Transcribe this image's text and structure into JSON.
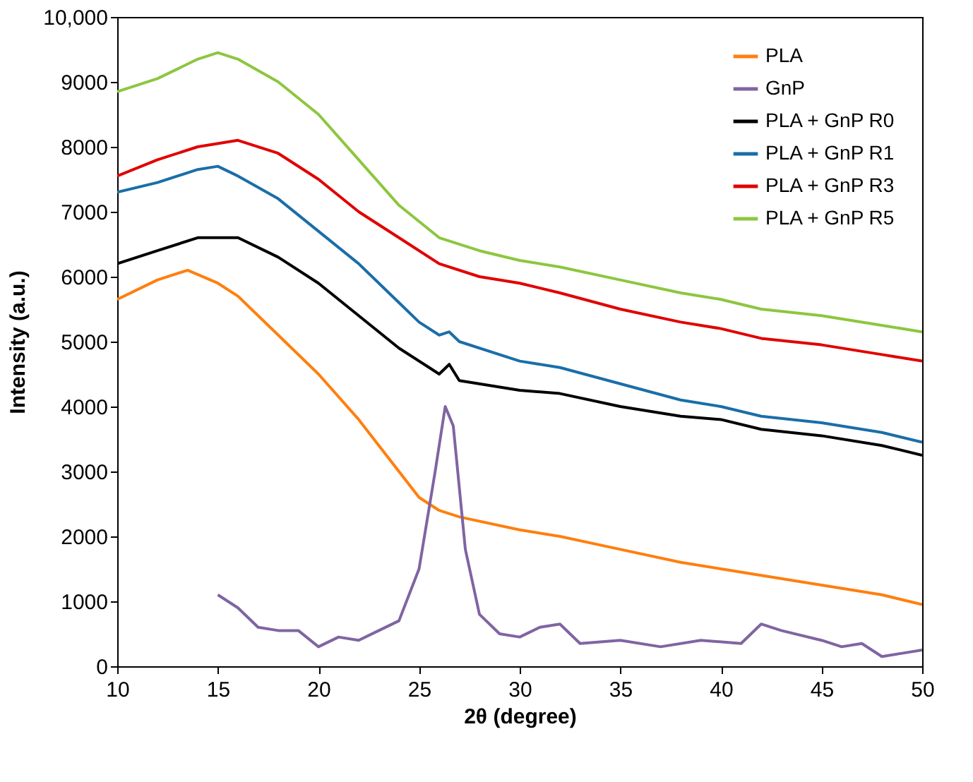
{
  "chart_data": {
    "type": "line",
    "xlabel": "2θ (degree)",
    "ylabel": "Intensity (a.u.)",
    "xlim": [
      10,
      50
    ],
    "xticks": [
      10,
      15,
      20,
      25,
      30,
      35,
      40,
      45,
      50
    ],
    "ylim": [
      0,
      10000
    ],
    "yticks": [
      0,
      1000,
      2000,
      3000,
      4000,
      5000,
      6000,
      7000,
      8000,
      9000,
      {
        "value": 10000,
        "label": "10,000"
      }
    ],
    "grid": false,
    "legend": "top right",
    "marker": "none",
    "line_style": "solid",
    "series": [
      {
        "name": "PLA",
        "color": "#ff7f0e",
        "x": [
          10,
          12,
          13.5,
          15,
          16,
          18,
          20,
          22,
          24,
          25,
          26,
          27,
          30,
          32,
          35,
          38,
          40,
          42,
          45,
          48,
          50
        ],
        "values": [
          5650,
          5950,
          6100,
          5900,
          5700,
          5100,
          4500,
          3800,
          3000,
          2600,
          2400,
          2300,
          2100,
          2000,
          1800,
          1600,
          1500,
          1400,
          1250,
          1100,
          950
        ]
      },
      {
        "name": "GnP",
        "color": "#8064a2",
        "x": [
          15,
          16,
          17,
          18,
          19,
          20,
          21,
          22,
          23,
          24,
          25,
          25.8,
          26.3,
          26.7,
          27.3,
          28,
          29,
          30,
          31,
          32,
          33,
          35,
          37,
          39,
          41,
          42,
          43,
          45,
          46,
          47,
          48,
          49,
          50
        ],
        "values": [
          1100,
          900,
          600,
          550,
          550,
          300,
          450,
          400,
          550,
          700,
          1500,
          3000,
          4000,
          3700,
          1800,
          800,
          500,
          450,
          600,
          650,
          350,
          400,
          300,
          400,
          350,
          650,
          550,
          400,
          300,
          350,
          150,
          200,
          250
        ]
      },
      {
        "name": "PLA + GnP R0",
        "color": "#000000",
        "x": [
          10,
          12,
          14,
          16,
          18,
          20,
          22,
          24,
          25.5,
          26,
          26.5,
          27,
          30,
          32,
          35,
          38,
          40,
          42,
          45,
          48,
          50
        ],
        "values": [
          6200,
          6400,
          6600,
          6600,
          6300,
          5900,
          5400,
          4900,
          4600,
          4500,
          4650,
          4400,
          4250,
          4200,
          4000,
          3850,
          3800,
          3650,
          3550,
          3400,
          3250
        ]
      },
      {
        "name": "PLA + GnP R1",
        "color": "#1a6ea8",
        "x": [
          10,
          12,
          14,
          15,
          16,
          18,
          20,
          22,
          24,
          25,
          26,
          26.5,
          27,
          30,
          32,
          35,
          38,
          40,
          42,
          45,
          48,
          50
        ],
        "values": [
          7300,
          7450,
          7650,
          7700,
          7550,
          7200,
          6700,
          6200,
          5600,
          5300,
          5100,
          5150,
          5000,
          4700,
          4600,
          4350,
          4100,
          4000,
          3850,
          3750,
          3600,
          3450
        ]
      },
      {
        "name": "PLA + GnP R3",
        "color": "#e00000",
        "x": [
          10,
          12,
          14,
          16,
          18,
          20,
          22,
          24,
          26,
          28,
          30,
          32,
          35,
          38,
          40,
          42,
          45,
          48,
          50
        ],
        "values": [
          7550,
          7800,
          8000,
          8100,
          7900,
          7500,
          7000,
          6600,
          6200,
          6000,
          5900,
          5750,
          5500,
          5300,
          5200,
          5050,
          4950,
          4800,
          4700
        ]
      },
      {
        "name": "PLA + GnP R5",
        "color": "#8dc63f",
        "x": [
          10,
          12,
          14,
          15,
          16,
          18,
          20,
          22,
          24,
          26,
          28,
          30,
          32,
          35,
          38,
          40,
          42,
          45,
          48,
          50
        ],
        "values": [
          8850,
          9050,
          9350,
          9450,
          9350,
          9000,
          8500,
          7800,
          7100,
          6600,
          6400,
          6250,
          6150,
          5950,
          5750,
          5650,
          5500,
          5400,
          5250,
          5150
        ]
      }
    ]
  }
}
